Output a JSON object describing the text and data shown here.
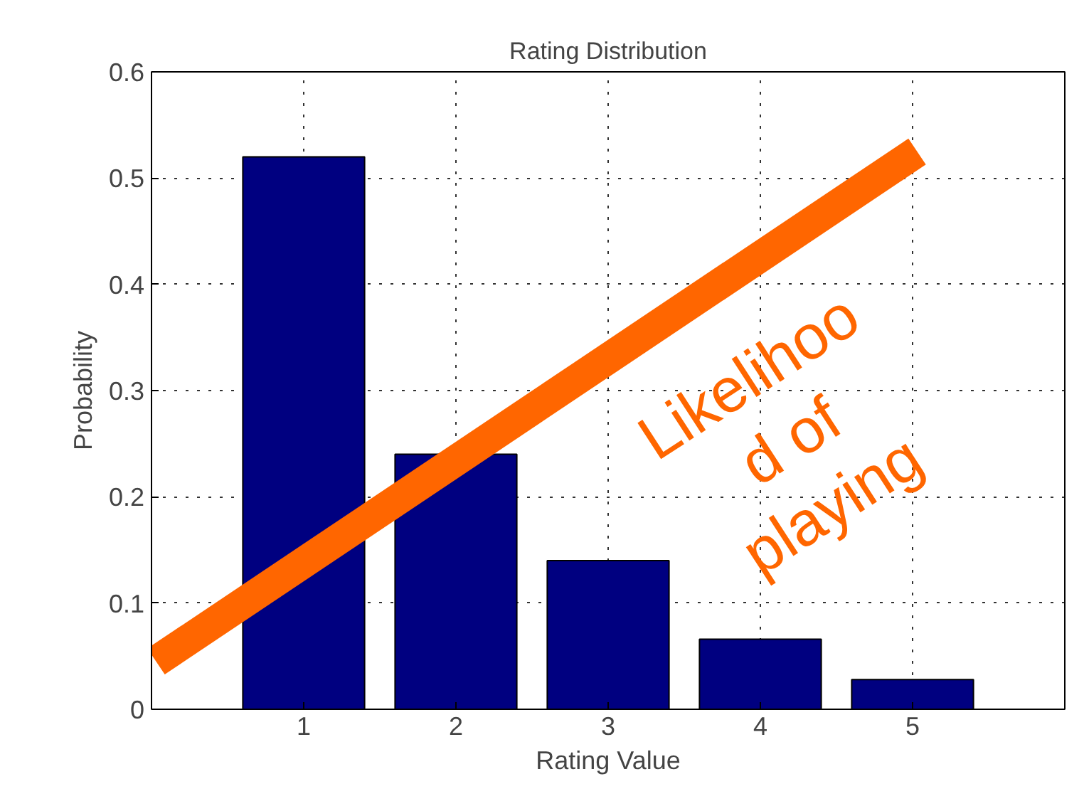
{
  "chart_data": {
    "type": "bar",
    "title": "Rating Distribution",
    "xlabel": "Rating Value",
    "ylabel": "Probability",
    "x": [
      1,
      2,
      3,
      4,
      5
    ],
    "series": [
      {
        "color": "#000080",
        "values": [
          0.52,
          0.24,
          0.14,
          0.066,
          0.028
        ]
      },
      {
        "type": "line",
        "color": "#ff6600",
        "x": [
          0.03,
          5.03
        ],
        "values": [
          0.045,
          0.525
        ]
      }
    ],
    "annotations": [
      "Likelihoo\nd of\nplaying"
    ],
    "xlim": [
      0,
      6
    ],
    "xticks": [
      1,
      2,
      3,
      4,
      5
    ],
    "ylim": [
      0,
      0.6
    ],
    "yticks": [
      0,
      0.1,
      0.2,
      0.3,
      0.4,
      0.5,
      0.6
    ],
    "grid": true,
    "line_style": "solid",
    "marker": "none"
  }
}
